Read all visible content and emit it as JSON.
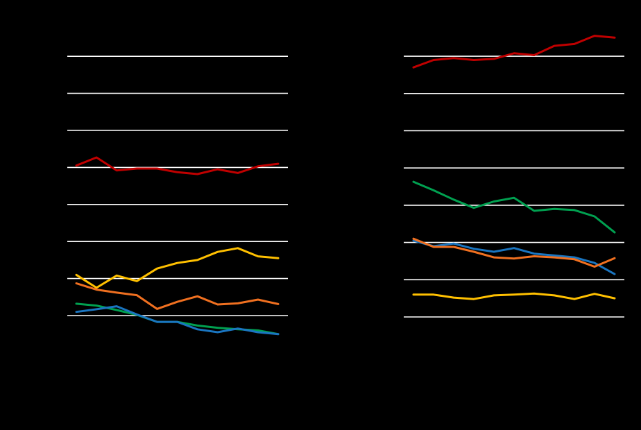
{
  "chart_data": [
    {
      "type": "line",
      "title": "",
      "xlabel": "",
      "ylabel": "",
      "grid": true,
      "x": [
        1,
        2,
        3,
        4,
        5,
        6,
        7,
        8,
        9,
        10,
        11
      ],
      "ylim": [
        0,
        8
      ],
      "yticks": [
        0,
        1,
        2,
        3,
        4,
        5,
        6,
        7
      ],
      "series": [
        {
          "color": "#c00000",
          "values": [
            4.05,
            4.27,
            3.92,
            3.97,
            3.97,
            3.87,
            3.82,
            3.95,
            3.85,
            4.03,
            4.1
          ]
        },
        {
          "color": "#ffc000",
          "values": [
            1.1,
            0.75,
            1.08,
            0.93,
            1.27,
            1.42,
            1.5,
            1.72,
            1.82,
            1.6,
            1.55
          ]
        },
        {
          "color": "#f07020",
          "values": [
            0.87,
            0.7,
            0.62,
            0.55,
            0.18,
            0.37,
            0.52,
            0.3,
            0.33,
            0.43,
            0.31
          ]
        },
        {
          "color": "#00a050",
          "values": [
            0.32,
            0.27,
            0.15,
            0.02,
            -0.17,
            -0.17,
            -0.27,
            -0.33,
            -0.37,
            -0.4,
            -0.5
          ]
        },
        {
          "color": "#1a75c0",
          "values": [
            0.1,
            0.17,
            0.25,
            0.03,
            -0.17,
            -0.17,
            -0.37,
            -0.45,
            -0.35,
            -0.45,
            -0.5
          ]
        }
      ]
    },
    {
      "type": "line",
      "title": "",
      "xlabel": "",
      "ylabel": "",
      "grid": true,
      "x": [
        1,
        2,
        3,
        4,
        5,
        6,
        7,
        8,
        9,
        10,
        11
      ],
      "ylim": [
        0,
        8
      ],
      "yticks": [
        0,
        1,
        2,
        3,
        4,
        5,
        6,
        7
      ],
      "series": [
        {
          "color": "#c00000",
          "values": [
            6.7,
            6.9,
            6.95,
            6.9,
            6.93,
            7.08,
            7.03,
            7.28,
            7.33,
            7.55,
            7.5
          ]
        },
        {
          "color": "#00a050",
          "values": [
            3.63,
            3.4,
            3.15,
            2.93,
            3.1,
            3.2,
            2.85,
            2.9,
            2.87,
            2.7,
            2.27
          ]
        },
        {
          "color": "#1a75c0",
          "values": [
            2.05,
            1.9,
            1.97,
            1.83,
            1.75,
            1.85,
            1.7,
            1.65,
            1.6,
            1.45,
            1.15
          ]
        },
        {
          "color": "#f07020",
          "values": [
            2.1,
            1.88,
            1.88,
            1.75,
            1.6,
            1.57,
            1.63,
            1.6,
            1.55,
            1.35,
            1.58
          ]
        },
        {
          "color": "#ffc000",
          "values": [
            0.6,
            0.6,
            0.52,
            0.48,
            0.58,
            0.6,
            0.63,
            0.58,
            0.48,
            0.62,
            0.5
          ]
        }
      ]
    }
  ]
}
